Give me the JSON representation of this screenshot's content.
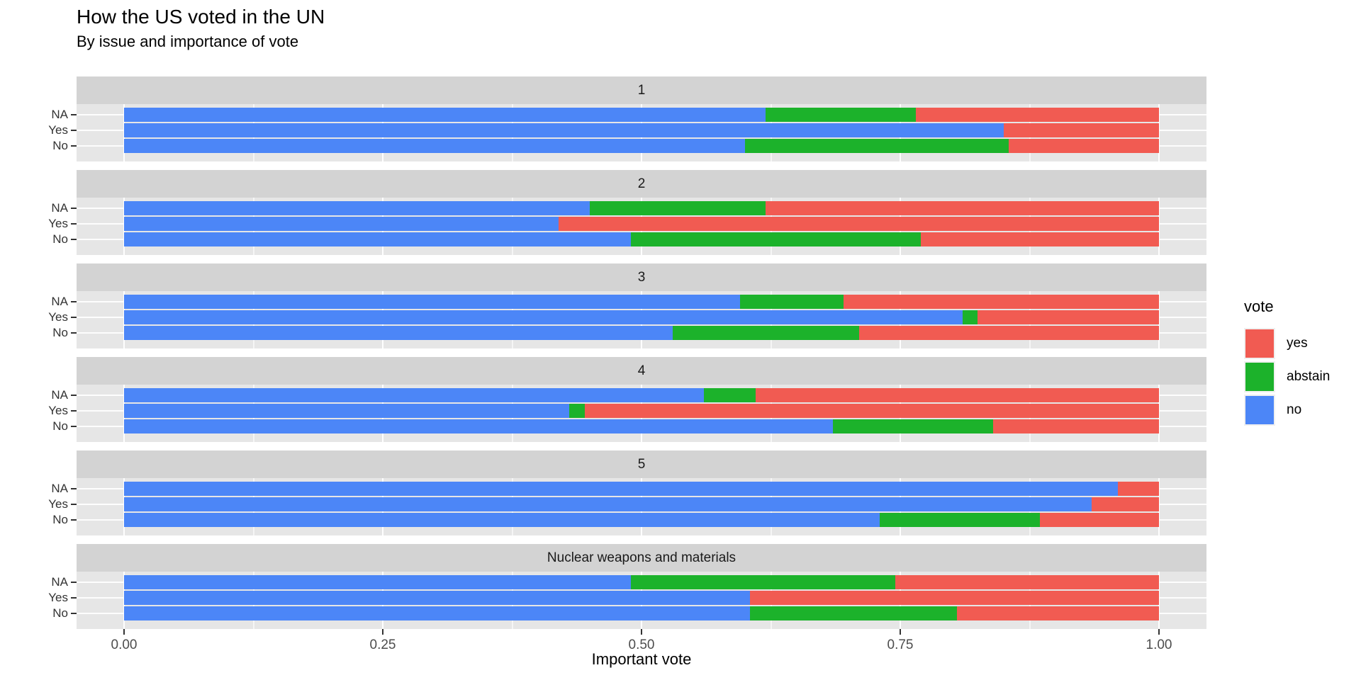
{
  "header": {
    "title": "How the US voted in the UN",
    "subtitle": "By issue and importance of vote"
  },
  "axis": {
    "x_title": "Important vote",
    "x_tick_labels": [
      "0.00",
      "0.25",
      "0.50",
      "0.75",
      "1.00"
    ],
    "x_tick_values": [
      0,
      0.25,
      0.5,
      0.75,
      1
    ],
    "y_categories": [
      "NA",
      "Yes",
      "No"
    ]
  },
  "legend": {
    "title": "vote",
    "items": [
      {
        "label": "yes",
        "color": "#F15B52"
      },
      {
        "label": "abstain",
        "color": "#1CB22B"
      },
      {
        "label": "no",
        "color": "#4C86F7"
      }
    ]
  },
  "colors": {
    "yes": "#F15B52",
    "abstain": "#1CB22B",
    "no": "#4C86F7",
    "strip_bg": "#D3D3D3",
    "panel_bg": "#E6E6E6",
    "axis_text": "#4D4D4D"
  },
  "chart_data": {
    "type": "bar",
    "orientation": "horizontal",
    "stacked": true,
    "normalized": true,
    "title": "How the US voted in the UN",
    "subtitle": "By issue and importance of vote",
    "xlabel": "Important vote",
    "ylabel": "",
    "xlim": [
      0,
      1
    ],
    "x_ticks": [
      0,
      0.25,
      0.5,
      0.75,
      1
    ],
    "grid": true,
    "legend_title": "vote",
    "legend_position": "right",
    "legend_entries": [
      "yes",
      "abstain",
      "no"
    ],
    "series_order_left_to_right": [
      "no",
      "abstain",
      "yes"
    ],
    "series_colors": {
      "no": "#4C86F7",
      "abstain": "#1CB22B",
      "yes": "#F15B52"
    },
    "row_categories_top_to_bottom": [
      "NA",
      "Yes",
      "No"
    ],
    "facets": [
      {
        "label": "1",
        "rows": [
          {
            "category": "NA",
            "no": 0.62,
            "abstain": 0.145,
            "yes": 0.235
          },
          {
            "category": "Yes",
            "no": 0.85,
            "abstain": 0,
            "yes": 0.15
          },
          {
            "category": "No",
            "no": 0.6,
            "abstain": 0.255,
            "yes": 0.145
          }
        ]
      },
      {
        "label": "2",
        "rows": [
          {
            "category": "NA",
            "no": 0.45,
            "abstain": 0.17,
            "yes": 0.38
          },
          {
            "category": "Yes",
            "no": 0.42,
            "abstain": 0,
            "yes": 0.58
          },
          {
            "category": "No",
            "no": 0.49,
            "abstain": 0.28,
            "yes": 0.23
          }
        ]
      },
      {
        "label": "3",
        "rows": [
          {
            "category": "NA",
            "no": 0.595,
            "abstain": 0.1,
            "yes": 0.305
          },
          {
            "category": "Yes",
            "no": 0.81,
            "abstain": 0.015,
            "yes": 0.175
          },
          {
            "category": "No",
            "no": 0.53,
            "abstain": 0.18,
            "yes": 0.29
          }
        ]
      },
      {
        "label": "4",
        "rows": [
          {
            "category": "NA",
            "no": 0.56,
            "abstain": 0.05,
            "yes": 0.39
          },
          {
            "category": "Yes",
            "no": 0.43,
            "abstain": 0.015,
            "yes": 0.555
          },
          {
            "category": "No",
            "no": 0.685,
            "abstain": 0.155,
            "yes": 0.16
          }
        ]
      },
      {
        "label": "5",
        "rows": [
          {
            "category": "NA",
            "no": 0.96,
            "abstain": 0,
            "yes": 0.04
          },
          {
            "category": "Yes",
            "no": 0.935,
            "abstain": 0,
            "yes": 0.065
          },
          {
            "category": "No",
            "no": 0.73,
            "abstain": 0.155,
            "yes": 0.115
          }
        ]
      },
      {
        "label": "Nuclear weapons and materials",
        "rows": [
          {
            "category": "NA",
            "no": 0.49,
            "abstain": 0.255,
            "yes": 0.255
          },
          {
            "category": "Yes",
            "no": 0.605,
            "abstain": 0,
            "yes": 0.395
          },
          {
            "category": "No",
            "no": 0.605,
            "abstain": 0.2,
            "yes": 0.195
          }
        ]
      }
    ]
  }
}
